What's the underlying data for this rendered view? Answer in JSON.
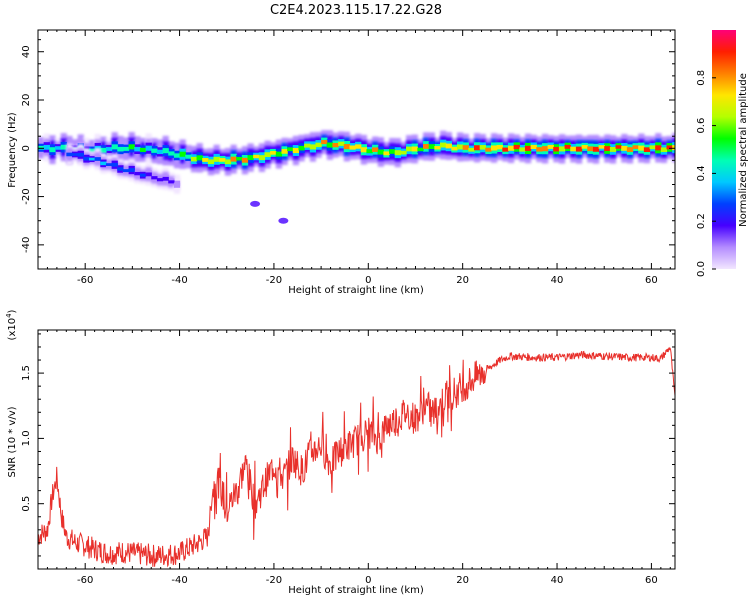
{
  "title": "C2E4.2023.115.17.22.G28",
  "chart_data": [
    {
      "type": "heatmap",
      "xlabel": "Height of straight line (km)",
      "ylabel": "Frequency (Hz)",
      "xlim": [
        -70,
        65
      ],
      "ylim": [
        -50,
        49
      ],
      "x_ticks": [
        -60,
        -40,
        -20,
        0,
        20,
        40,
        60
      ],
      "y_ticks": [
        -40,
        -20,
        0,
        20,
        40
      ],
      "colorbar": {
        "label": "Normalized spectral amplitude",
        "range": [
          0.0,
          1.0
        ],
        "ticks": [
          "0.0",
          "0.2",
          "0.4",
          "0.6",
          "0.8"
        ],
        "tick_values": [
          0.0,
          0.2,
          0.4,
          0.6,
          0.8
        ],
        "colormap": [
          "#f2e6ff",
          "#b48cff",
          "#4600ff",
          "#0040ff",
          "#00c8ff",
          "#00ffb4",
          "#00ff00",
          "#b4ff00",
          "#ffe600",
          "#ff8000",
          "#ff1e00",
          "#ff0078"
        ]
      },
      "ridge": {
        "x": [
          -70,
          -65,
          -60,
          -55,
          -50,
          -45,
          -40,
          -35,
          -30,
          -25,
          -20,
          -15,
          -10,
          -5,
          0,
          5,
          10,
          15,
          20,
          25,
          30,
          40,
          50,
          60,
          65
        ],
        "frequency_hz": [
          0,
          0,
          -1,
          0,
          0,
          -1,
          -3,
          -5,
          -5,
          -4,
          -2,
          0,
          2,
          1,
          -1,
          -2,
          0,
          1,
          0,
          0,
          0,
          0,
          0,
          0,
          0
        ],
        "amplitude": [
          0.45,
          0.5,
          0.45,
          0.5,
          0.55,
          0.5,
          0.6,
          0.75,
          0.85,
          0.75,
          0.8,
          0.7,
          0.8,
          0.85,
          0.8,
          0.75,
          0.8,
          0.8,
          0.85,
          0.9,
          0.95,
          0.95,
          0.95,
          0.95,
          0.95
        ]
      },
      "secondary_branch": {
        "x": [
          -64,
          -58,
          -52,
          -48,
          -44,
          -40
        ],
        "frequency_hz": [
          -2,
          -5,
          -9,
          -11,
          -13,
          -15
        ],
        "amplitude": [
          0.3,
          0.35,
          0.3,
          0.25,
          0.2,
          0.15
        ]
      },
      "weak_spots": {
        "x": [
          -24,
          -18
        ],
        "frequency_hz": [
          -23,
          -30
        ],
        "amplitude": [
          0.05,
          0.05
        ]
      }
    },
    {
      "type": "line",
      "xlabel": "Height of straight line (km)",
      "ylabel": "SNR (10 * v/v)",
      "scale_label": "(x10",
      "scale_exponent": "4",
      "scale_suffix": ")",
      "xlim": [
        -70,
        65
      ],
      "ylim": [
        0,
        18300
      ],
      "x_ticks": [
        -60,
        -40,
        -20,
        0,
        20,
        40,
        60
      ],
      "y_ticks": [
        5000,
        10000,
        15000
      ],
      "y_tick_labels": [
        "0.5",
        "1.0",
        "1.5"
      ],
      "series": [
        {
          "color": "#e8302b",
          "x": [
            -70,
            -68,
            -67,
            -66,
            -65,
            -64,
            -62,
            -60,
            -58,
            -55,
            -52,
            -50,
            -45,
            -40,
            -36,
            -34,
            -33,
            -32,
            -30,
            -28,
            -26,
            -24,
            -22,
            -20,
            -18,
            -16,
            -14,
            -12,
            -10,
            -8,
            -6,
            -4,
            -2,
            0,
            2,
            4,
            6,
            8,
            10,
            12,
            14,
            16,
            18,
            20,
            22,
            24,
            26,
            28,
            30,
            35,
            40,
            45,
            50,
            55,
            60,
            62,
            64,
            65
          ],
          "y": [
            2500,
            3000,
            5500,
            7000,
            4000,
            2500,
            2000,
            1800,
            1500,
            1200,
            1300,
            1200,
            1000,
            1200,
            2000,
            2500,
            6000,
            7000,
            4500,
            6000,
            8000,
            5000,
            6500,
            8000,
            7000,
            8500,
            7500,
            9000,
            9500,
            8000,
            9000,
            9500,
            10000,
            10500,
            10000,
            11000,
            11500,
            12000,
            11500,
            12500,
            12000,
            13000,
            13500,
            14000,
            14500,
            15000,
            15500,
            16000,
            16300,
            16200,
            16200,
            16400,
            16300,
            16200,
            16200,
            16100,
            17000,
            13000
          ]
        }
      ]
    }
  ]
}
